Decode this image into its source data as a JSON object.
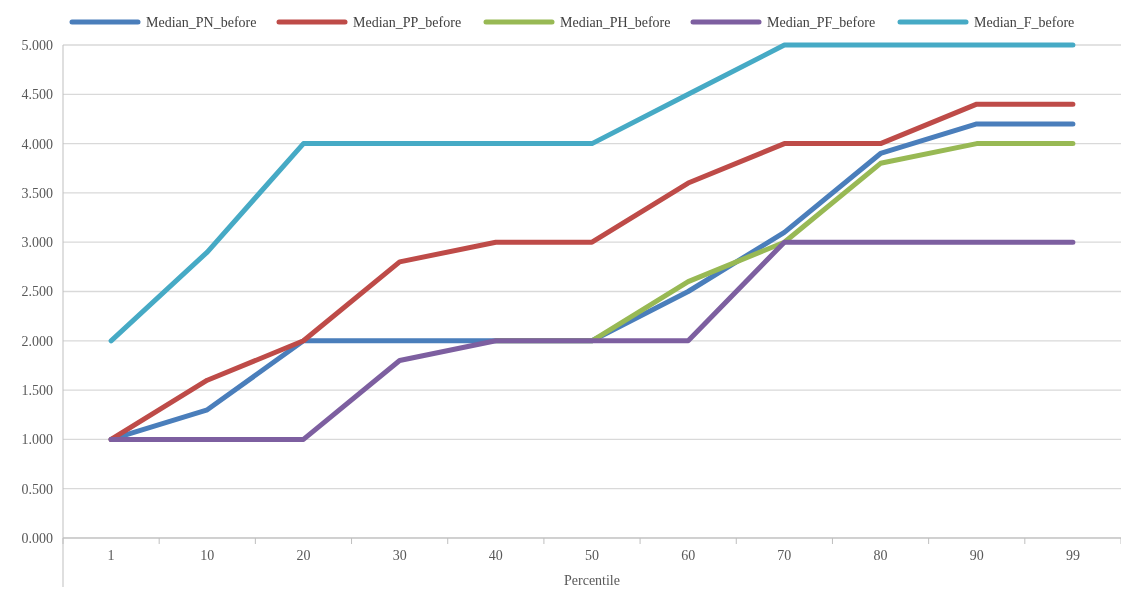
{
  "chart_data": {
    "type": "line",
    "xlabel": "Percentile",
    "categories": [
      "1",
      "10",
      "20",
      "30",
      "40",
      "50",
      "60",
      "70",
      "80",
      "90",
      "99"
    ],
    "ylim": [
      0,
      5
    ],
    "yticks": [
      {
        "value": 0,
        "label": "0.000"
      },
      {
        "value": 0.5,
        "label": "0.500"
      },
      {
        "value": 1,
        "label": "1.000"
      },
      {
        "value": 1.5,
        "label": "1.500"
      },
      {
        "value": 2,
        "label": "2.000"
      },
      {
        "value": 2.5,
        "label": "2.500"
      },
      {
        "value": 3,
        "label": "3.000"
      },
      {
        "value": 3.5,
        "label": "3.500"
      },
      {
        "value": 4,
        "label": "4.000"
      },
      {
        "value": 4.5,
        "label": "4.500"
      },
      {
        "value": 5,
        "label": "5.000"
      }
    ],
    "grid": "y",
    "legend": "top",
    "marker": "none",
    "line_style": "solid",
    "series": [
      {
        "name": "Median_PN_before",
        "color": "#4a7ebb",
        "values": [
          1.0,
          1.3,
          2.0,
          2.0,
          2.0,
          2.0,
          2.5,
          3.1,
          3.9,
          4.2,
          4.2
        ]
      },
      {
        "name": "Median_PP_before",
        "color": "#be4b48",
        "values": [
          1.0,
          1.6,
          2.0,
          2.8,
          3.0,
          3.0,
          3.6,
          4.0,
          4.0,
          4.4,
          4.4
        ]
      },
      {
        "name": "Median_PH_before",
        "color": "#98b954",
        "values": [
          null,
          null,
          null,
          null,
          2.0,
          2.0,
          2.6,
          3.0,
          3.8,
          4.0,
          4.0
        ]
      },
      {
        "name": "Median_PF_before",
        "color": "#7d5fa0",
        "values": [
          1.0,
          1.0,
          1.0,
          1.8,
          2.0,
          2.0,
          2.0,
          3.0,
          3.0,
          3.0,
          3.0
        ]
      },
      {
        "name": "Median_F_before",
        "color": "#46aac5",
        "values": [
          2.0,
          2.9,
          4.0,
          4.0,
          4.0,
          4.0,
          4.5,
          5.0,
          5.0,
          5.0,
          5.0
        ]
      }
    ]
  }
}
